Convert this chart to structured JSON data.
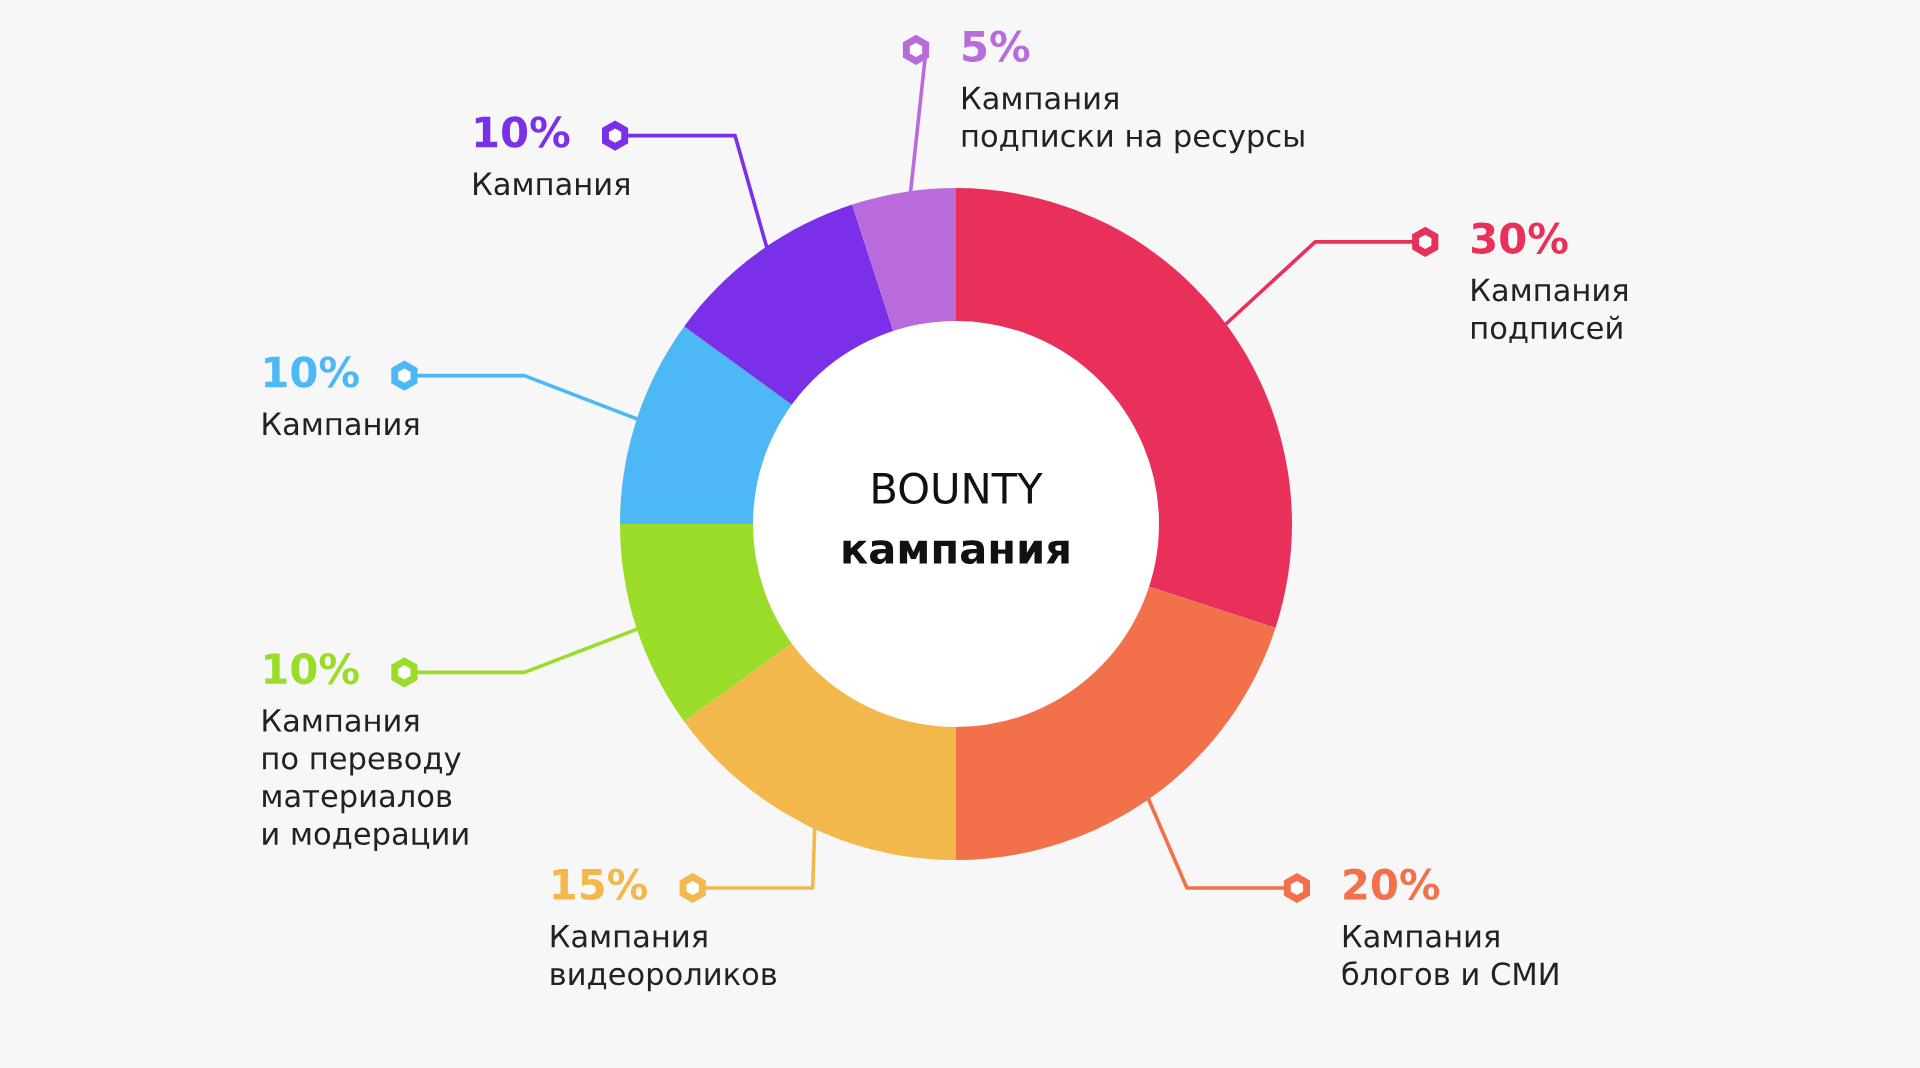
{
  "chart_data": {
    "type": "donut",
    "title": "BOUNTY",
    "subtitle": "кампания",
    "categories": [
      "Кампания\nподписей",
      "Кампания\nблогов и СМИ",
      "Кампания\nвидеороликов",
      "Кампания\nпо переводу\nматериалов\nи модерации",
      "Кампания",
      "Кампания",
      "Кампания\nподписки на ресурсы"
    ],
    "values": [
      30,
      20,
      15,
      10,
      10,
      10,
      5
    ],
    "value_labels": [
      "30%",
      "20%",
      "15%",
      "10%",
      "10%",
      "10%",
      "5%"
    ],
    "colors": [
      "#e8305a",
      "#f2714a",
      "#f2b84b",
      "#9bdc28",
      "#4cb8f5",
      "#7a30e8",
      "#b96bdc"
    ],
    "legend": "left"
  }
}
